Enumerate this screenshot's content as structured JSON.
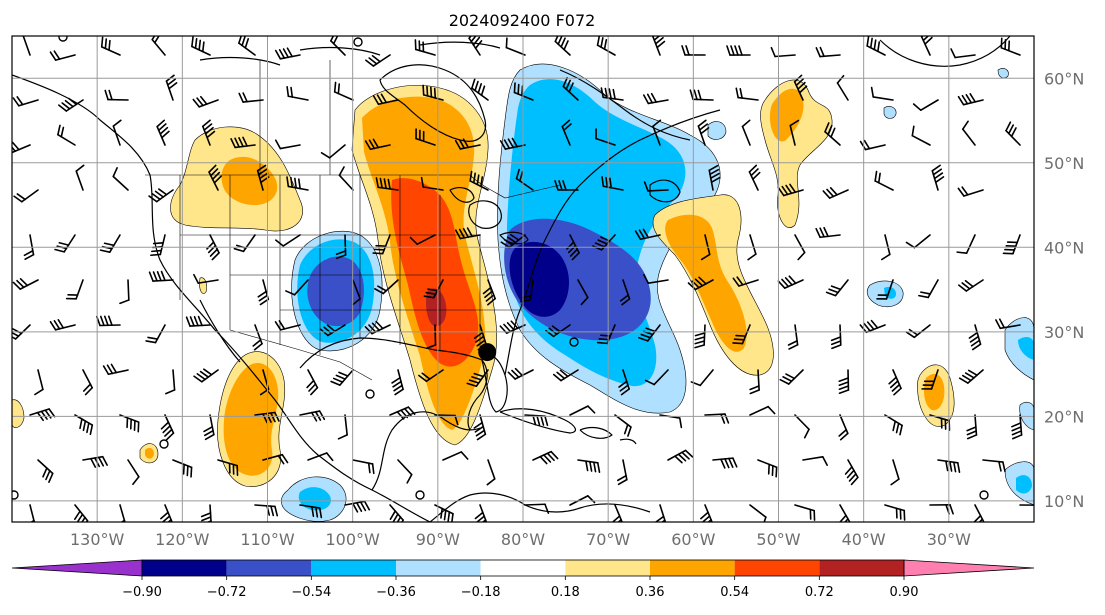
{
  "title": "2024092400 F072",
  "map": {
    "lon_range": [
      -140,
      -20
    ],
    "lat_range": [
      7.5,
      65
    ],
    "lon_labels": [
      "130°W",
      "120°W",
      "110°W",
      "100°W",
      "90°W",
      "80°W",
      "70°W",
      "60°W",
      "50°W",
      "40°W",
      "30°W"
    ],
    "lat_labels": [
      "60°N",
      "50°N",
      "40°N",
      "30°N",
      "20°N",
      "10°N"
    ],
    "grid": true,
    "storm_marker": {
      "lon": -84.2,
      "lat": 27.6
    }
  },
  "colorbar": {
    "tick_labels": [
      "−0.90",
      "−0.72",
      "−0.54",
      "−0.36",
      "−0.18",
      "0.18",
      "0.36",
      "0.54",
      "0.72",
      "0.90"
    ],
    "colors": [
      "#9932cc",
      "#00008b",
      "#3a50c8",
      "#00bfff",
      "#b0e0ff",
      "#ffffff",
      "#ffe68a",
      "#ffa500",
      "#ff4500",
      "#b22222",
      "#ff80b0"
    ]
  },
  "chart_data": {
    "type": "heatmap",
    "title": "2024092400 F072",
    "levels": [
      -0.9,
      -0.72,
      -0.54,
      -0.36,
      -0.18,
      0.18,
      0.36,
      0.54,
      0.72,
      0.9
    ],
    "x_range": [
      -140,
      -20
    ],
    "y_range": [
      7.5,
      65
    ],
    "anomalies": [
      {
        "lon": -90,
        "lat": 45,
        "peak": 0.85
      },
      {
        "lon": -88,
        "lat": 30,
        "peak": 0.8
      },
      {
        "lon": -103,
        "lat": 35,
        "peak": -0.6
      },
      {
        "lon": -74,
        "lat": 36,
        "peak": -0.85
      },
      {
        "lon": -72,
        "lat": 50,
        "peak": -0.5
      },
      {
        "lon": -110,
        "lat": 20,
        "peak": 0.55
      },
      {
        "lon": -53,
        "lat": 35,
        "peak": 0.5
      },
      {
        "lon": -112,
        "lat": 48,
        "peak": 0.4
      },
      {
        "lon": -50,
        "lat": 58,
        "peak": 0.4
      },
      {
        "lon": -32,
        "lat": 23,
        "peak": 0.5
      }
    ]
  }
}
